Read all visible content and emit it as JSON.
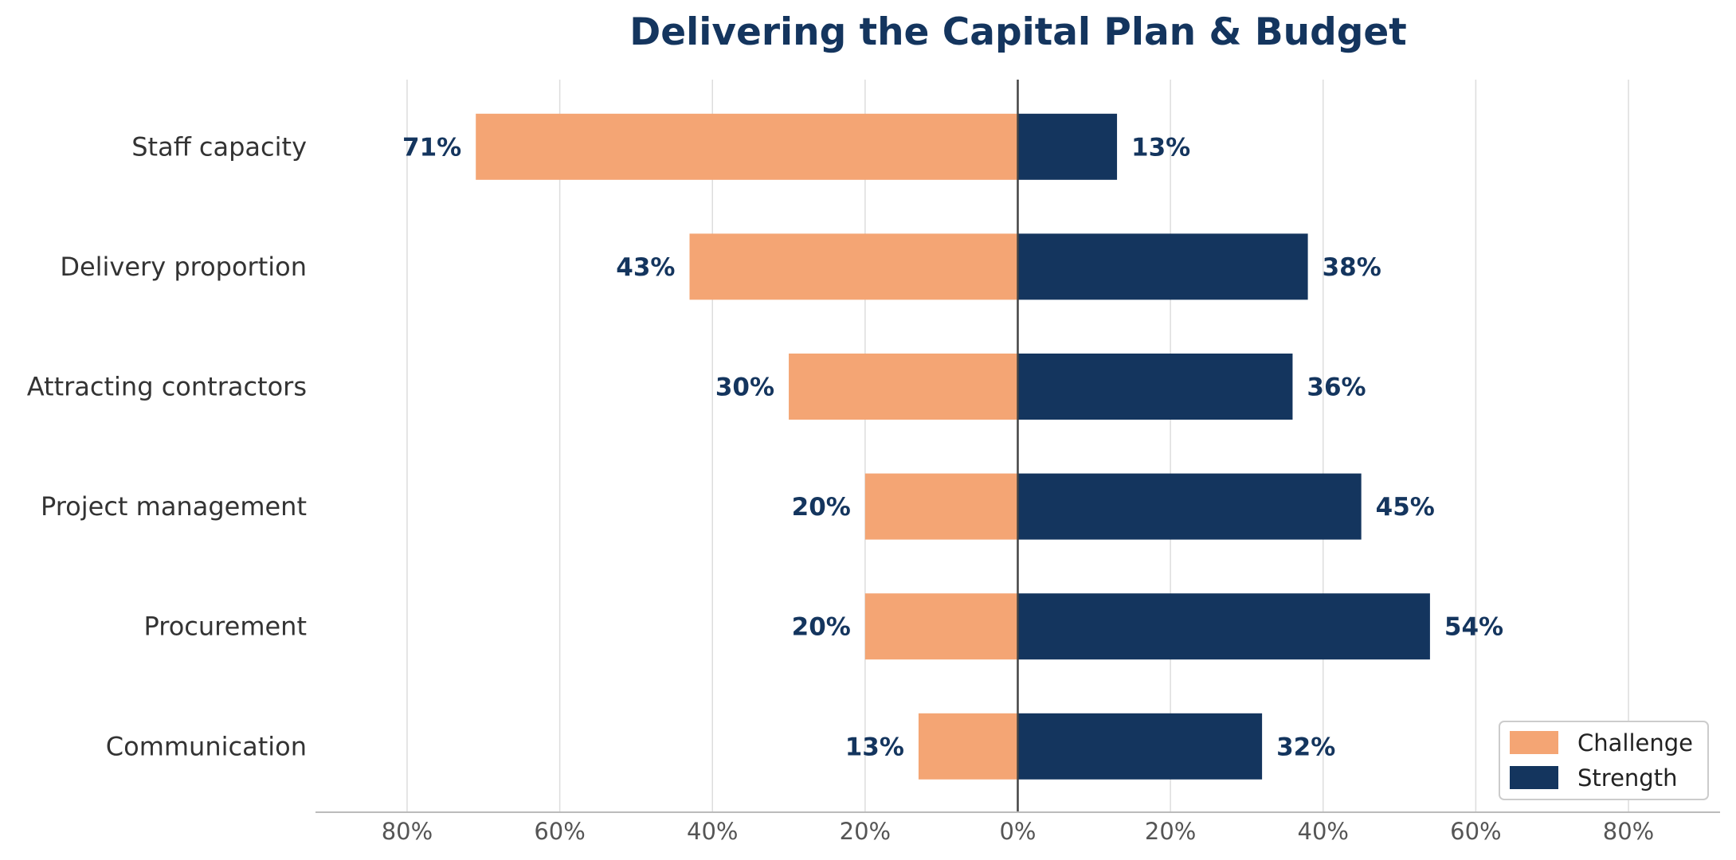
{
  "chart_data": {
    "type": "bar",
    "orientation": "horizontal-diverging",
    "title": "Delivering the Capital Plan & Budget",
    "categories": [
      "Staff capacity",
      "Delivery proportion",
      "Attracting contractors",
      "Project management",
      "Procurement",
      "Communication"
    ],
    "series": [
      {
        "name": "Challenge",
        "direction": "left",
        "color": "#F4A574",
        "values": [
          71,
          43,
          30,
          20,
          20,
          13
        ],
        "labels": [
          "71%",
          "43%",
          "30%",
          "20%",
          "20%",
          "13%"
        ]
      },
      {
        "name": "Strength",
        "direction": "right",
        "color": "#14355E",
        "values": [
          13,
          38,
          36,
          45,
          54,
          32
        ],
        "labels": [
          "13%",
          "38%",
          "36%",
          "45%",
          "54%",
          "32%"
        ]
      }
    ],
    "xlim": [
      -92,
      92
    ],
    "xticks": [
      -80,
      -60,
      -40,
      -20,
      0,
      20,
      40,
      60,
      80
    ],
    "xtick_labels": [
      "80%",
      "60%",
      "40%",
      "20%",
      "0%",
      "20%",
      "40%",
      "60%",
      "80%"
    ],
    "grid": "vertical",
    "legend_position": "bottom-right",
    "colors": {
      "title": "#14355E",
      "value_label": "#14355E",
      "grid": "#DDDDDD",
      "zero_line": "#444444",
      "axis": "#BBBBBB"
    }
  }
}
